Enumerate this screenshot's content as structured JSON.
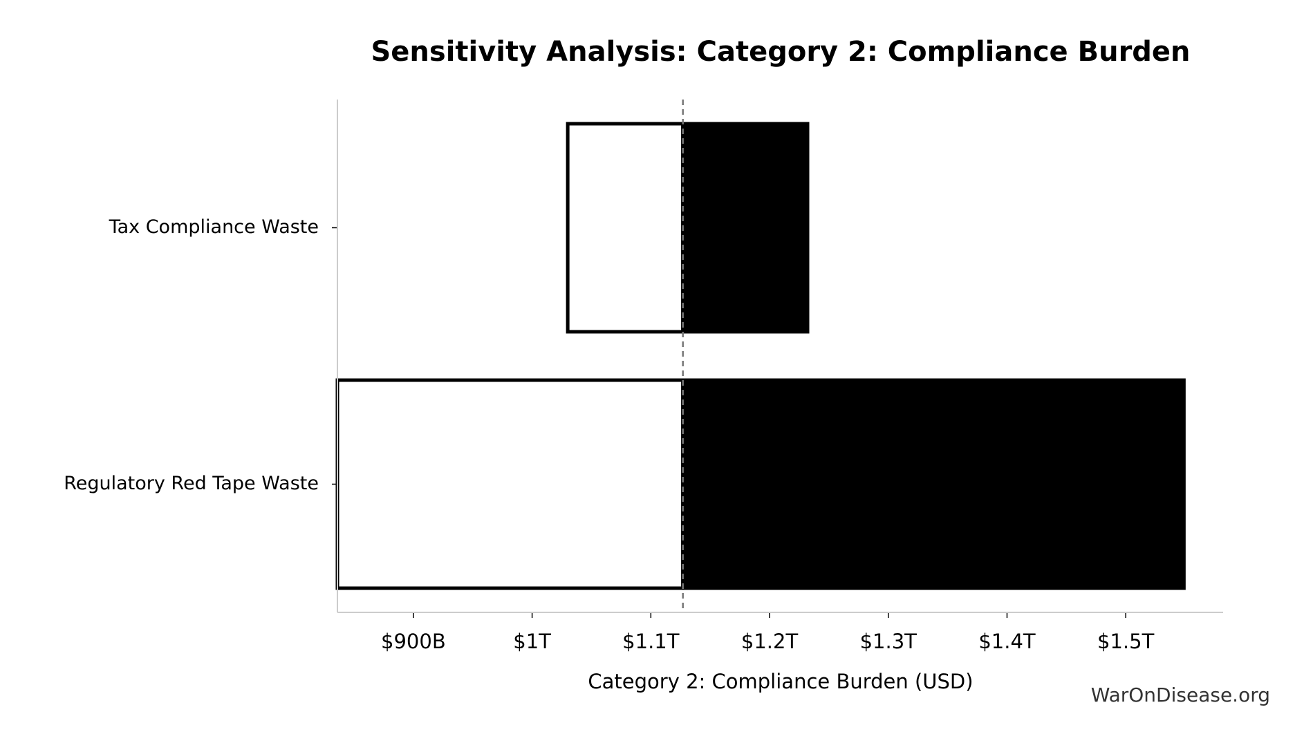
{
  "chart_data": {
    "type": "tornado",
    "title": "Sensitivity Analysis: Category 2: Compliance Burden",
    "x_label": "Category 2: Compliance Burden (USD)",
    "watermark": "WarOnDisease.org",
    "categories": [
      "Tax Compliance Waste",
      "Regulatory Red Tape Waste"
    ],
    "baseline": 1127000000000,
    "series": [
      {
        "color": "#ffffff",
        "edgecolor": "#000000",
        "values": [
          1030000000000,
          836000000000
        ]
      },
      {
        "color": "#000000",
        "edgecolor": "#000000",
        "values": [
          1232000000000,
          1549000000000
        ]
      }
    ],
    "xlim": [
      836000000000,
      1582000000000
    ],
    "xticks": [
      {
        "value": 900000000000,
        "label": "$900B"
      },
      {
        "value": 1000000000000,
        "label": "$1T"
      },
      {
        "value": 1100000000000,
        "label": "$1.1T"
      },
      {
        "value": 1200000000000,
        "label": "$1.2T"
      },
      {
        "value": 1300000000000,
        "label": "$1.3T"
      },
      {
        "value": 1400000000000,
        "label": "$1.4T"
      },
      {
        "value": 1500000000000,
        "label": "$1.5T"
      }
    ],
    "grid": false
  }
}
